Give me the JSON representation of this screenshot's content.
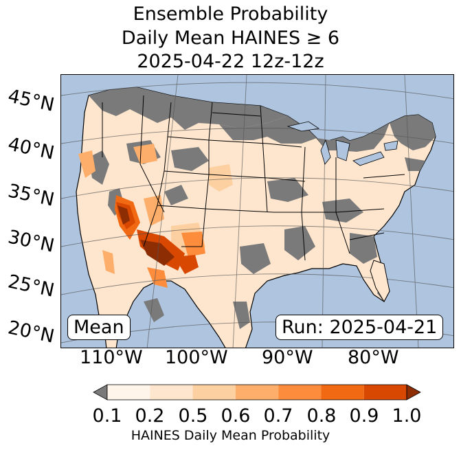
{
  "title": {
    "line1": "Ensemble Probability",
    "line2": "Daily Mean HAINES ≥ 6",
    "line3": "2025-04-22 12z-12z"
  },
  "map": {
    "lat_labels": [
      "45°N",
      "40°N",
      "35°N",
      "30°N",
      "25°N",
      "20°N"
    ],
    "lon_labels": [
      "110°W",
      "100°W",
      "90°W",
      "80°W"
    ],
    "mean_label": "Mean",
    "run_label": "Run: 2025-04-21",
    "colors": {
      "ocean": "#aec4df",
      "gray": "#7a7a7a",
      "c1": "#fff5eb",
      "c2": "#fee6ce",
      "c3": "#fdd0a2",
      "c4": "#fdae6b",
      "c5": "#fd8d3c",
      "c6": "#f16913",
      "c7": "#d94801",
      "c8": "#8c2d04"
    }
  },
  "colorbar": {
    "ticks": [
      "0.1",
      "0.2",
      "0.5",
      "0.6",
      "0.7",
      "0.8",
      "0.9",
      "1.0"
    ],
    "colors": [
      "#fff5eb",
      "#fee6ce",
      "#fdd0a2",
      "#fdae6b",
      "#fd8d3c",
      "#f16913",
      "#d94801"
    ],
    "under_color": "#7a7a7a",
    "over_color": "#8c2d04",
    "label": "HAINES Daily Mean Probability"
  }
}
